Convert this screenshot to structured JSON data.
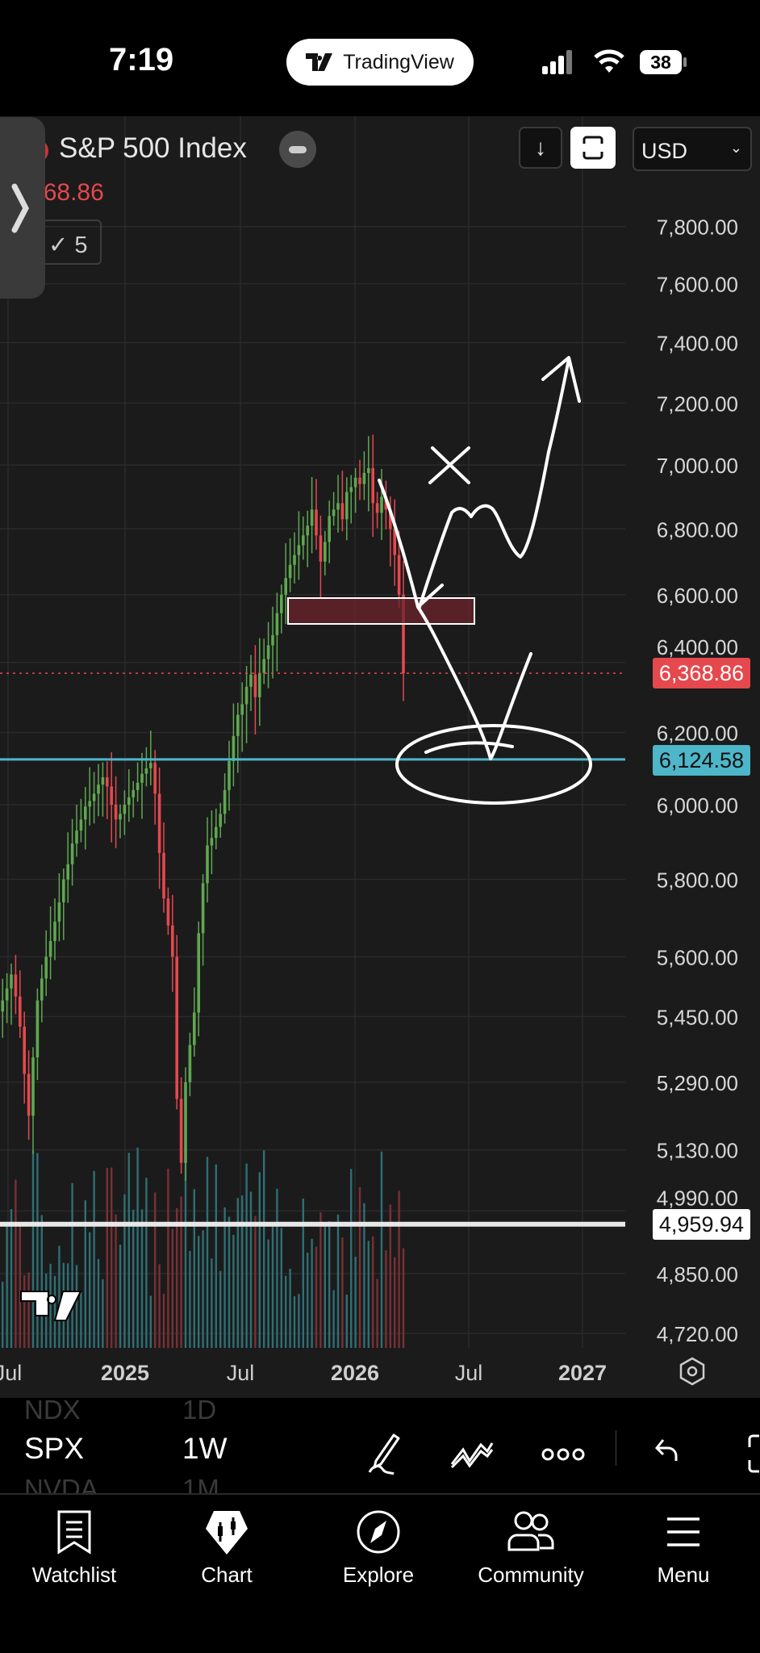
{
  "status_bar": {
    "time": "7:19",
    "app_pill": "TradingView",
    "battery": "38"
  },
  "header": {
    "symbol_title": "S&P 500 Index",
    "last_price": "6,368.86",
    "indicator_count": "5",
    "currency": "USD"
  },
  "price_tags": {
    "last": "6,368.86",
    "cyan_line": "6,124.58",
    "white_line": "4,959.94"
  },
  "colors": {
    "up": "#5fa850",
    "down": "#e5484d",
    "vol_up": "#2f6f73",
    "vol_down": "#7a3034",
    "cyan": "#4db6c9",
    "bg": "#1b1b1c"
  },
  "chart_data": {
    "type": "candlestick",
    "interval": "1W",
    "price_scale": "log",
    "ylim": [
      4700,
      7900
    ],
    "y_ticks": [
      "7,800.00",
      "7,600.00",
      "7,400.00",
      "7,200.00",
      "7,000.00",
      "6,800.00",
      "6,600.00",
      "6,400.00",
      "6,200.00",
      "6,000.00",
      "5,800.00",
      "5,600.00",
      "5,450.00",
      "5,290.00",
      "5,130.00",
      "4,990.00",
      "4,850.00",
      "4,720.00"
    ],
    "y_tick_values": [
      7800,
      7600,
      7400,
      7200,
      7000,
      6800,
      6600,
      6400,
      6200,
      6000,
      5800,
      5600,
      5450,
      5290,
      5130,
      4990,
      4850,
      4720
    ],
    "x_ticks": [
      "Jul",
      "2025",
      "Jul",
      "2026",
      "Jul",
      "2027"
    ],
    "closes": [
      5490,
      5520,
      5555,
      5500,
      5425,
      5310,
      5210,
      5350,
      5490,
      5545,
      5600,
      5640,
      5690,
      5740,
      5800,
      5840,
      5895,
      5930,
      5960,
      5995,
      6010,
      6030,
      6055,
      6075,
      6050,
      6000,
      5960,
      5975,
      6000,
      6020,
      6040,
      6060,
      6085,
      6100,
      6115,
      6030,
      5870,
      5750,
      5680,
      5600,
      5250,
      5100,
      5290,
      5380,
      5460,
      5660,
      5790,
      5890,
      5910,
      5940,
      5975,
      6040,
      6120,
      6190,
      6250,
      6280,
      6330,
      6365,
      6300,
      6370,
      6410,
      6450,
      6480,
      6545,
      6600,
      6650,
      6690,
      6720,
      6750,
      6780,
      6810,
      6860,
      6780,
      6700,
      6760,
      6840,
      6860,
      6880,
      6830,
      6915,
      6930,
      6960,
      6940,
      6975,
      6990,
      6880,
      6850,
      6900,
      6860,
      6800,
      6720,
      6600,
      6368.86
    ],
    "horizontal_lines": [
      6368.86,
      6124.58,
      4959.94
    ],
    "zone": [
      6530,
      6600
    ],
    "grid": true
  },
  "toolbar": {
    "symbol": "SPX",
    "interval": "1W",
    "symbol_prev": "NDX",
    "interval_prev": "1D",
    "symbol_next": "NVDA",
    "interval_next": "1M"
  },
  "nav": [
    {
      "label": "Watchlist",
      "icon": "bookmark-list"
    },
    {
      "label": "Chart",
      "icon": "chart-candles"
    },
    {
      "label": "Explore",
      "icon": "compass"
    },
    {
      "label": "Community",
      "icon": "people"
    },
    {
      "label": "Menu",
      "icon": "hamburger"
    }
  ]
}
